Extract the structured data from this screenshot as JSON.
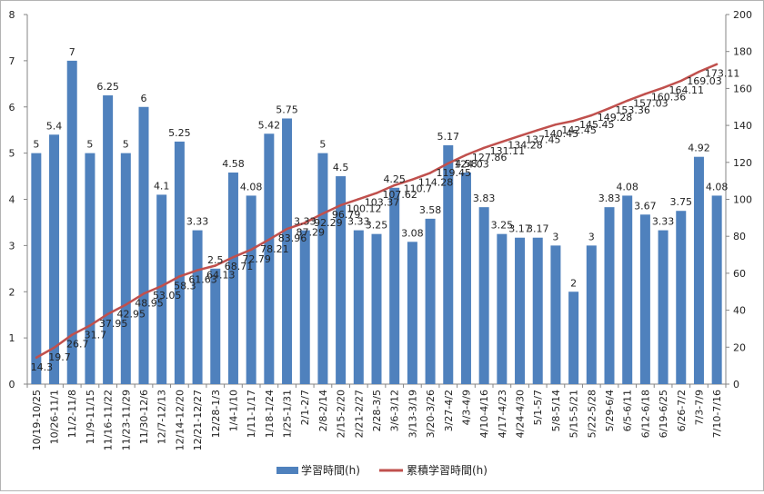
{
  "chart_data": {
    "type": "bar+line",
    "categories": [
      "10/19-10/25",
      "10/26-11/1",
      "11/2-11/8",
      "11/9-11/15",
      "11/16-11/22",
      "11/23-11/29",
      "11/30-12/6",
      "12/7-12/13",
      "12/14-12/20",
      "12/21-12/27",
      "12/28-1/3",
      "1/4-1/10",
      "1/11-1/17",
      "1/18-1/24",
      "1/25-1/31",
      "2/1-2/7",
      "2/8-2/14",
      "2/15-2/20",
      "2/21-2/27",
      "2/28-3/5",
      "3/6-3/12",
      "3/13-3/19",
      "3/20-3/26",
      "3/27-4/2",
      "4/3-4/9",
      "4/10-4/16",
      "4/17-4/23",
      "4/24-4/30",
      "5/1-5/7",
      "5/8-5/14",
      "5/15-5/21",
      "5/22-5/28",
      "5/29-6/4",
      "6/5-6/11",
      "6/12-6/18",
      "6/19-6/25",
      "6/26-7/2",
      "7/3-7/9",
      "7/10-7/16"
    ],
    "series": [
      {
        "name": "学習時間(h)",
        "kind": "bar",
        "axis": "left",
        "color": "#4f81bd",
        "values": [
          5,
          5.4,
          7,
          5,
          6.25,
          5,
          6,
          4.1,
          5.25,
          3.33,
          2.5,
          4.58,
          4.08,
          5.42,
          5.75,
          3.33,
          5,
          4.5,
          3.33,
          3.25,
          4.25,
          3.08,
          3.58,
          5.17,
          4.58,
          3.83,
          3.25,
          3.17,
          3.17,
          3,
          2,
          3,
          3.83,
          4.08,
          3.67,
          3.33,
          3.75,
          4.92,
          4.08
        ],
        "labels": [
          "5",
          "5.4",
          "7",
          "5",
          "6.25",
          "5",
          "6",
          "4.1",
          "5.25",
          "3.33",
          "2.5",
          "4.58",
          "4.08",
          "5.42",
          "5.75",
          "3.33",
          "5",
          "4.5",
          "3.33",
          "3.25",
          "4.25",
          "3.08",
          "3.58",
          "5.17",
          "4.58",
          "3.83",
          "3.25",
          "3.17",
          "3.17",
          "3",
          "2",
          "3",
          "3.83",
          "4.08",
          "3.67",
          "3.33",
          "3.75",
          "4.92",
          "4.08"
        ]
      },
      {
        "name": "累積学習時間(h)",
        "kind": "line",
        "axis": "right",
        "color": "#c0504d",
        "values": [
          14.3,
          19.7,
          26.7,
          31.7,
          37.95,
          42.95,
          48.95,
          53.05,
          58.3,
          61.63,
          64.13,
          68.71,
          72.79,
          78.21,
          83.96,
          87.29,
          92.29,
          96.79,
          100.12,
          103.37,
          107.62,
          110.7,
          114.28,
          119.45,
          124.03,
          127.86,
          131.11,
          134.28,
          137.45,
          140.45,
          142.45,
          145.45,
          149.28,
          153.36,
          157.03,
          160.36,
          164.11,
          169.03,
          173.11
        ],
        "labels": [
          "14.3",
          "19.7",
          "26.7",
          "31.7",
          "37.95",
          "42.95",
          "48.95",
          "53.05",
          "58.3",
          "61.63",
          "64.13",
          "68.71",
          "72.79",
          "78.21",
          "83.96",
          "87.29",
          "92.29",
          "96.79",
          "100.12",
          "103.37",
          "107.62",
          "110.7",
          "114.28",
          "119.45",
          "124.03",
          "127.86",
          "131.11",
          "134.28",
          "137.45",
          "140.45",
          "142.45",
          "145.45",
          "149.28",
          "153.36",
          "157.03",
          "160.36",
          "164.11",
          "169.03",
          "173.11"
        ]
      }
    ],
    "y_left": {
      "min": 0,
      "max": 8,
      "ticks": [
        "0",
        "1",
        "2",
        "3",
        "4",
        "5",
        "6",
        "7",
        "8"
      ]
    },
    "y_right": {
      "min": 0,
      "max": 200,
      "ticks": [
        "0",
        "20",
        "40",
        "60",
        "80",
        "100",
        "120",
        "140",
        "160",
        "180",
        "200"
      ]
    },
    "grid": false,
    "legend_position": "bottom"
  }
}
